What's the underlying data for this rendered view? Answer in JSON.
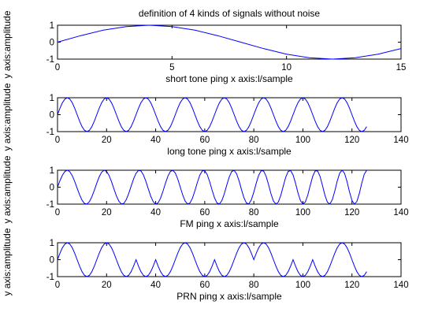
{
  "chart_data": [
    {
      "type": "line",
      "title": "definition of 4 kinds of signals without noise",
      "xlabel": "short tone ping x axis:l/sample",
      "ylabel": "y axis:amplitude",
      "xlim": [
        0,
        15
      ],
      "ylim": [
        -1,
        1
      ],
      "xticks": [
        "0",
        "5",
        "10",
        "15"
      ],
      "yticks": [
        "1",
        "0",
        "-1"
      ],
      "grid": false,
      "series": [
        {
          "signal": "sine",
          "color": "#0000ff",
          "x": [
            0,
            1,
            2,
            3,
            4,
            5,
            6,
            7,
            8,
            9,
            10,
            11,
            12,
            13,
            14,
            15
          ],
          "values": [
            0.0,
            0.38,
            0.71,
            0.92,
            1.0,
            0.92,
            0.71,
            0.38,
            0.0,
            -0.38,
            -0.71,
            -0.92,
            -1.0,
            -0.92,
            -0.71,
            -0.38
          ]
        }
      ]
    },
    {
      "type": "line",
      "xlabel": "long tone ping x axis:l/sample",
      "ylabel": "y axis:amplitude",
      "xlim": [
        0,
        140
      ],
      "ylim": [
        -1,
        1
      ],
      "xticks": [
        "0",
        "20",
        "40",
        "60",
        "80",
        "100",
        "120",
        "140"
      ],
      "yticks": [
        "1",
        "0",
        "-1"
      ],
      "grid": false,
      "series": [
        {
          "signal": "sine",
          "color": "#0000ff",
          "samples": 127,
          "period": 16,
          "phase": 0
        }
      ]
    },
    {
      "type": "line",
      "xlabel": "FM ping x axis:l/sample",
      "ylabel": "y axis:amplitude",
      "xlim": [
        0,
        140
      ],
      "ylim": [
        -1,
        1
      ],
      "xticks": [
        "0",
        "20",
        "40",
        "60",
        "80",
        "100",
        "120",
        "140"
      ],
      "yticks": [
        "1",
        "0",
        "-1"
      ],
      "grid": false,
      "series": [
        {
          "signal": "chirp",
          "color": "#0000ff",
          "samples": 127,
          "start_period": 16,
          "end_period": 10
        }
      ]
    },
    {
      "type": "line",
      "xlabel": "PRN ping x axis:l/sample",
      "ylabel": "y axis:amplitude",
      "xlim": [
        0,
        140
      ],
      "ylim": [
        -1,
        1
      ],
      "xticks": [
        "0",
        "20",
        "40",
        "60",
        "80",
        "100",
        "120",
        "140"
      ],
      "yticks": [
        "1",
        "0",
        "-1"
      ],
      "grid": false,
      "series": [
        {
          "signal": "prn_sine",
          "color": "#0000ff",
          "samples": 127,
          "period": 16,
          "chip_length": 8,
          "chip_phases": [
            0,
            0,
            0,
            0,
            1,
            0,
            0,
            0,
            1,
            1,
            0,
            0,
            1,
            0,
            0,
            0
          ]
        }
      ]
    }
  ]
}
